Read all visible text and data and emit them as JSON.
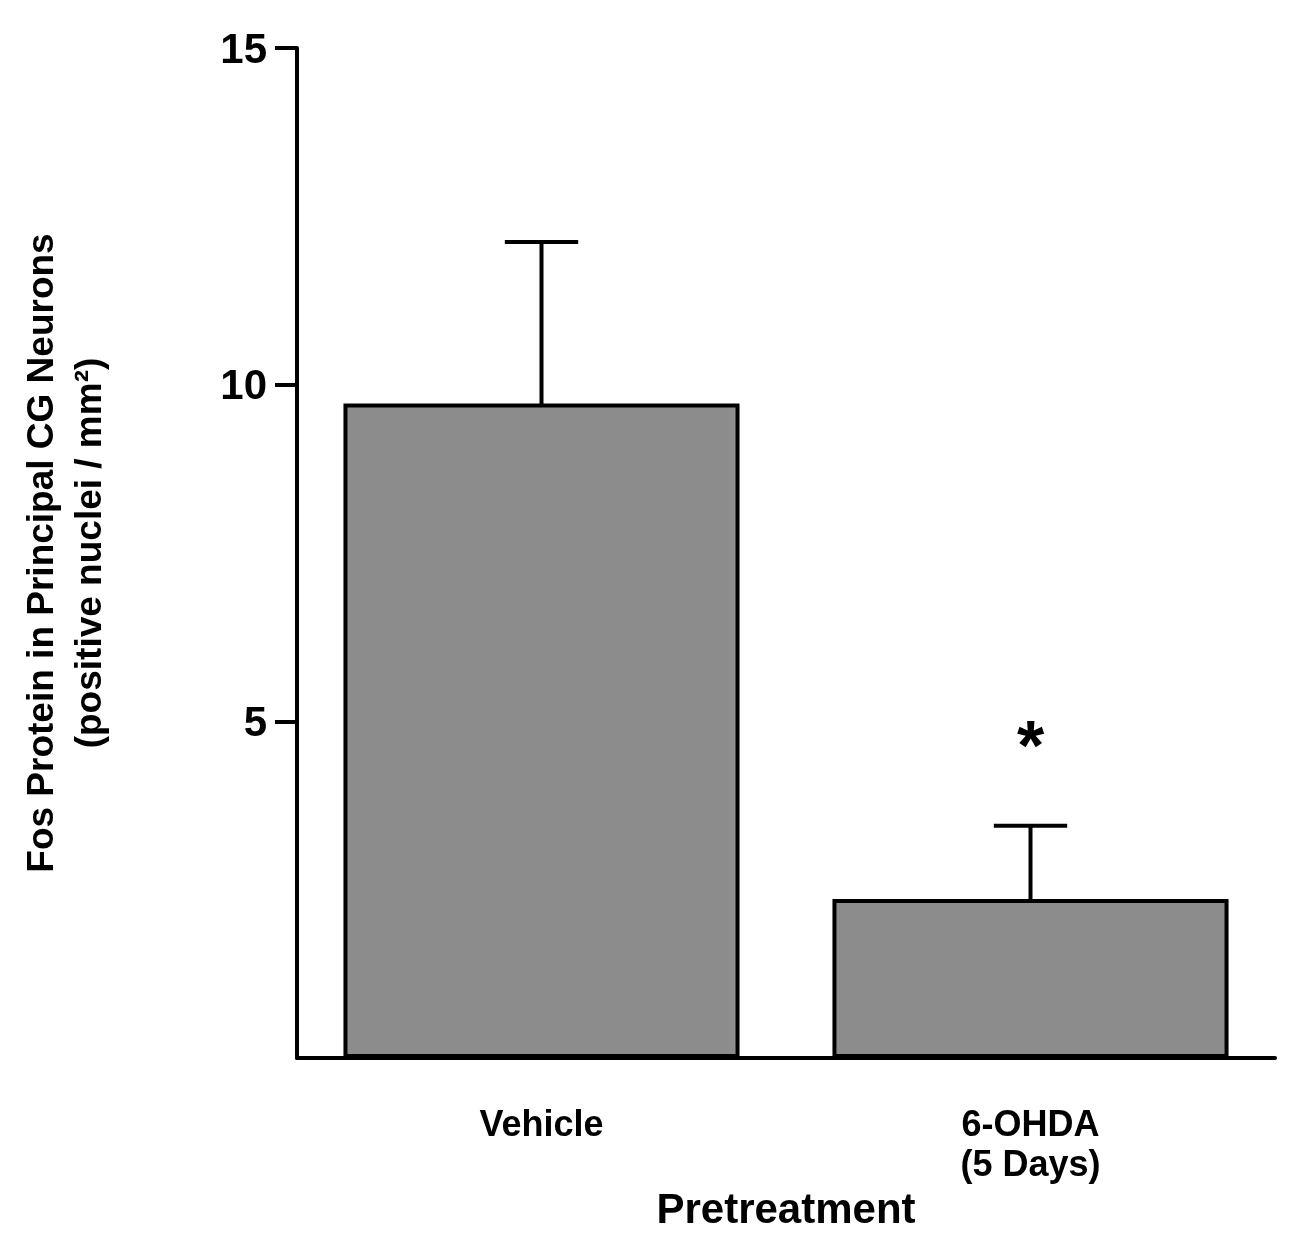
{
  "chart_data": {
    "type": "bar",
    "ylabel": "Fos Protein in Principal CG Neurons\n(positive nuclei / mm²)",
    "xlabel": "Pretreatment",
    "categories": [
      "Vehicle",
      "6-OHDA\n(5 Days)"
    ],
    "values": [
      9.72,
      2.36
    ],
    "errors": [
      2.4,
      1.09
    ],
    "color": "#8c8c8c",
    "ylim": [
      0,
      15
    ],
    "yticks": [
      5,
      10,
      15
    ],
    "grid": false,
    "annotations": [
      "*"
    ]
  }
}
